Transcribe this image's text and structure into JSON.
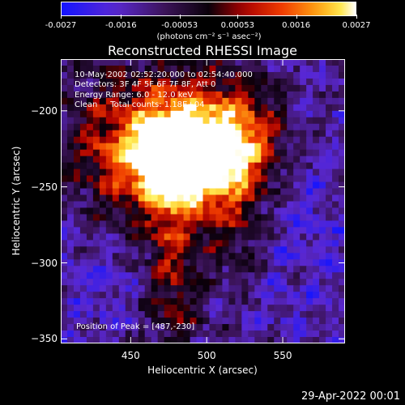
{
  "colorbar": {
    "ticks": [
      "-0.0027",
      "-0.0016",
      "-0.00053",
      "0.00053",
      "0.0016",
      "0.0027"
    ],
    "units": "(photons cm⁻² s⁻¹ asec⁻²)",
    "range": [
      -0.0027,
      0.0027
    ]
  },
  "chart_data": {
    "type": "heatmap",
    "title": "Reconstructed RHESSI Image",
    "xlabel": "Heliocentric X (arcsec)",
    "ylabel": "Heliocentric Y (arcsec)",
    "xlim": [
      404,
      591
    ],
    "ylim": [
      -353,
      -166
    ],
    "xticks": [
      "450",
      "500",
      "550"
    ],
    "yticks": [
      "-200",
      "-250",
      "-300",
      "-350"
    ],
    "peak": {
      "x": 487,
      "y": -230
    },
    "grid": false
  },
  "info": {
    "time_range": "10-May-2002 02:52:20.000 to 02:54:40.000",
    "detectors": "Detectors: 3F 4F 5F 6F 7F 8F, Att 0",
    "energy": "Energy Range: 6.0 - 12.0 keV",
    "algorithm": "Clean     Total counts: 1.18E+04",
    "peak_text": "Position of Peak = [487,-230]"
  },
  "timestamp": "29-Apr-2022 00:01"
}
